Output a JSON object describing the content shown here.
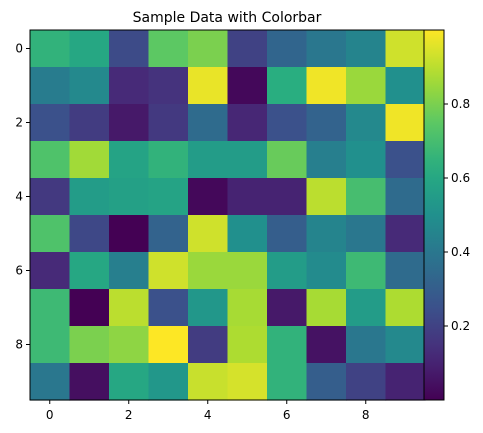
{
  "chart_data": {
    "type": "heatmap",
    "title": "Sample Data with Colorbar",
    "colormap": "viridis",
    "x_ticks": [
      "0",
      "2",
      "4",
      "6",
      "8"
    ],
    "y_ticks": [
      "0",
      "2",
      "4",
      "6",
      "8"
    ],
    "colorbar_ticks": [
      "0.2",
      "0.4",
      "0.6",
      "0.8"
    ],
    "vmin": 0.0,
    "vmax": 1.0,
    "rows": 10,
    "cols": 10,
    "values": [
      [
        0.65,
        0.6,
        0.23,
        0.75,
        0.8,
        0.2,
        0.33,
        0.4,
        0.45,
        0.93
      ],
      [
        0.42,
        0.47,
        0.12,
        0.15,
        0.97,
        0.02,
        0.63,
        0.98,
        0.85,
        0.5
      ],
      [
        0.25,
        0.18,
        0.07,
        0.17,
        0.35,
        0.11,
        0.25,
        0.32,
        0.47,
        0.98
      ],
      [
        0.72,
        0.86,
        0.58,
        0.65,
        0.55,
        0.55,
        0.77,
        0.43,
        0.5,
        0.25
      ],
      [
        0.17,
        0.55,
        0.57,
        0.58,
        0.02,
        0.1,
        0.1,
        0.9,
        0.7,
        0.35
      ],
      [
        0.72,
        0.22,
        0.0,
        0.32,
        0.93,
        0.5,
        0.3,
        0.45,
        0.4,
        0.12
      ],
      [
        0.12,
        0.6,
        0.43,
        0.93,
        0.85,
        0.85,
        0.55,
        0.48,
        0.68,
        0.35
      ],
      [
        0.68,
        0.0,
        0.9,
        0.25,
        0.53,
        0.87,
        0.07,
        0.87,
        0.55,
        0.88
      ],
      [
        0.68,
        0.8,
        0.83,
        1.0,
        0.18,
        0.88,
        0.65,
        0.05,
        0.4,
        0.47
      ],
      [
        0.4,
        0.04,
        0.6,
        0.53,
        0.92,
        0.94,
        0.65,
        0.3,
        0.2,
        0.1
      ]
    ]
  }
}
